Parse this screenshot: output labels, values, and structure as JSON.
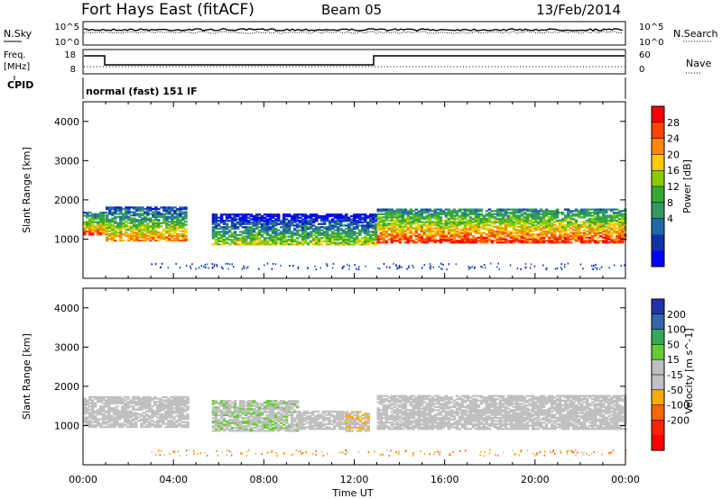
{
  "header": {
    "station": "Fort Hays East (fitACF)",
    "beam": "Beam 05",
    "date": "13/Feb/2014"
  },
  "noise_panel": {
    "left_label": "N.Sky",
    "right_label": "N.Search",
    "ticks_left": [
      "10^5",
      "10^0"
    ],
    "ticks_right": [
      "10^5",
      "10^0"
    ]
  },
  "freq_panel": {
    "left_label": "Freq.",
    "left_unit": "[MHz]",
    "right_label": "Nave",
    "ticks_left": [
      "18",
      "8"
    ],
    "ticks_right": [
      "60",
      "0"
    ]
  },
  "cpid": {
    "label": "CPID",
    "value": "normal (fast) 151 IF"
  },
  "power_colorbar": {
    "label": "Power [dB]",
    "ticks": [
      "28",
      "24",
      "20",
      "16",
      "12",
      "8",
      "4"
    ],
    "colors": [
      "#ff0000",
      "#ff4400",
      "#ff8800",
      "#ffcc00",
      "#88cc00",
      "#33aa33",
      "#339966",
      "#2266aa",
      "#1133aa",
      "#0000ff"
    ]
  },
  "velocity_colorbar": {
    "label": "Velocity [m s^-1]",
    "ticks": [
      "200",
      "100",
      "50",
      "15",
      "-15",
      "-50",
      "-100",
      "-200"
    ],
    "colors": [
      "#2233aa",
      "#3366aa",
      "#33aa55",
      "#66cc33",
      "#c0c0c0",
      "#c0c0c0",
      "#ffaa00",
      "#ff6600",
      "#ff2200",
      "#ff0000"
    ]
  },
  "x_axis": {
    "title": "Time UT",
    "ticks": [
      "00:00",
      "04:00",
      "08:00",
      "12:00",
      "16:00",
      "20:00",
      "00:00"
    ]
  },
  "chart_data": [
    {
      "type": "heatmap",
      "name": "power",
      "ylabel": "Slant Range [km]",
      "xlabel": "Time UT",
      "xlim": [
        0,
        24
      ],
      "ylim": [
        0,
        4500
      ],
      "yticks": [
        1000,
        2000,
        3000,
        4000
      ],
      "clim": [
        0,
        30
      ],
      "blobs": [
        {
          "t0": 0.0,
          "t1": 1.0,
          "r0": 1100,
          "r1": 1700,
          "mean": 16
        },
        {
          "t0": 1.0,
          "t1": 4.6,
          "r0": 950,
          "r1": 1800,
          "mean": 14
        },
        {
          "t0": 5.7,
          "t1": 12.9,
          "r0": 850,
          "r1": 1650,
          "mean": 9
        },
        {
          "t0": 13.0,
          "t1": 24.0,
          "r0": 900,
          "r1": 1750,
          "mean": 18
        }
      ]
    },
    {
      "type": "heatmap",
      "name": "velocity",
      "ylabel": "Slant Range [km]",
      "xlabel": "Time UT",
      "xlim": [
        0,
        24
      ],
      "ylim": [
        0,
        4500
      ],
      "yticks": [
        1000,
        2000,
        3000,
        4000
      ],
      "clim": [
        -200,
        200
      ],
      "blobs": [
        {
          "t0": 0.0,
          "t1": 4.6,
          "r0": 950,
          "r1": 1750,
          "mean": 0
        },
        {
          "t0": 5.7,
          "t1": 9.5,
          "r0": 850,
          "r1": 1650,
          "mean": 30
        },
        {
          "t0": 9.5,
          "t1": 11.6,
          "r0": 900,
          "r1": 1350,
          "mean": 20
        },
        {
          "t0": 11.6,
          "t1": 12.6,
          "r0": 850,
          "r1": 1350,
          "mean": -30
        },
        {
          "t0": 13.0,
          "t1": 24.0,
          "r0": 900,
          "r1": 1750,
          "mean": 0
        }
      ]
    }
  ]
}
